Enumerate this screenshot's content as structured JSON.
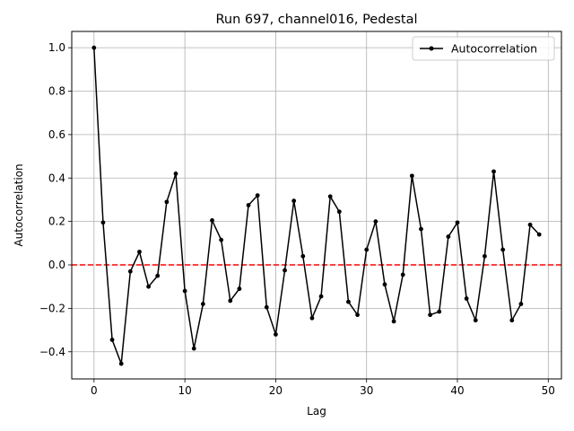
{
  "chart_data": {
    "type": "line",
    "title": "Run 697, channel016, Pedestal",
    "xlabel": "Lag",
    "ylabel": "Autocorrelation",
    "xlim": [
      -2.45,
      51.45
    ],
    "ylim": [
      -0.525,
      1.075
    ],
    "xticks": [
      0,
      10,
      20,
      30,
      40,
      50
    ],
    "yticks": [
      -0.4,
      -0.2,
      0.0,
      0.2,
      0.4,
      0.6,
      0.8,
      1.0
    ],
    "ytick_labels": [
      "−0.4",
      "−0.2",
      "0.0",
      "0.2",
      "0.4",
      "0.6",
      "0.8",
      "1.0"
    ],
    "grid": true,
    "legend_position": "top-right",
    "series": [
      {
        "name": "Autocorrelation",
        "color": "#000000",
        "marker": "circle",
        "x": [
          0,
          1,
          2,
          3,
          4,
          5,
          6,
          7,
          8,
          9,
          10,
          11,
          12,
          13,
          14,
          15,
          16,
          17,
          18,
          19,
          20,
          21,
          22,
          23,
          24,
          25,
          26,
          27,
          28,
          29,
          30,
          31,
          32,
          33,
          34,
          35,
          36,
          37,
          38,
          39,
          40,
          41,
          42,
          43,
          44,
          45,
          46,
          47,
          48,
          49
        ],
        "values": [
          1.0,
          0.195,
          -0.345,
          -0.455,
          -0.03,
          0.06,
          -0.1,
          -0.05,
          0.29,
          0.42,
          -0.12,
          -0.385,
          -0.18,
          0.205,
          0.115,
          -0.165,
          -0.11,
          0.275,
          0.32,
          -0.195,
          -0.32,
          -0.025,
          0.295,
          0.04,
          -0.245,
          -0.145,
          0.315,
          0.245,
          -0.17,
          -0.23,
          0.07,
          0.2,
          -0.09,
          -0.26,
          -0.045,
          0.41,
          0.165,
          -0.23,
          -0.215,
          0.13,
          0.195,
          -0.155,
          -0.255,
          0.04,
          0.43,
          0.07,
          -0.255,
          -0.18,
          0.185,
          0.14
        ]
      }
    ],
    "reference_line": {
      "y": 0.0,
      "color": "#ff0000",
      "style": "dashed"
    }
  }
}
